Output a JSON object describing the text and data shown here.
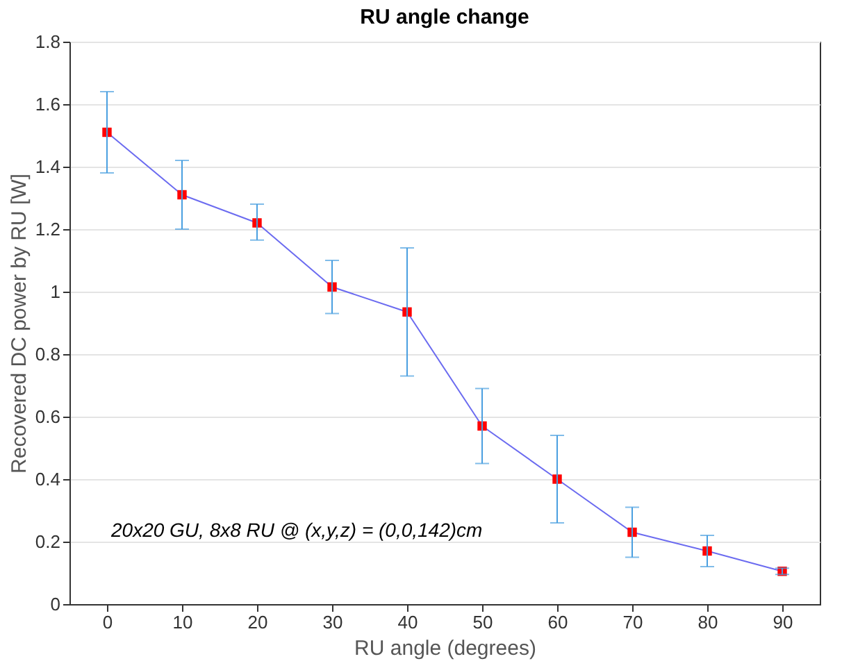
{
  "chart_data": {
    "type": "line",
    "title": "RU angle change",
    "xlabel": "RU angle (degrees)",
    "ylabel": "Recovered DC power by RU [W]",
    "x": [
      0,
      10,
      20,
      30,
      40,
      50,
      60,
      70,
      80,
      90
    ],
    "series": [
      {
        "color": "#6b6bf0",
        "values": [
          1.51,
          1.31,
          1.22,
          1.015,
          0.935,
          0.57,
          0.4,
          0.23,
          0.17,
          0.105
        ],
        "errors": [
          [
            1.38,
            1.64
          ],
          [
            1.2,
            1.42
          ],
          [
            1.165,
            1.28
          ],
          [
            0.93,
            1.1
          ],
          [
            0.73,
            1.14
          ],
          [
            0.45,
            0.69
          ],
          [
            0.26,
            0.54
          ],
          [
            0.15,
            0.31
          ],
          [
            0.12,
            0.22
          ],
          [
            0.095,
            0.115
          ]
        ]
      }
    ],
    "xlim": [
      -5,
      95
    ],
    "xticks": [
      0,
      10,
      20,
      30,
      40,
      50,
      60,
      70,
      80,
      90
    ],
    "ylim": [
      0,
      1.8
    ],
    "yticks": [
      0,
      0.2,
      0.4,
      0.6,
      0.8,
      1,
      1.2,
      1.4,
      1.6,
      1.8
    ],
    "grid": "y",
    "marker": "square",
    "line_style": "solid",
    "annotations": [
      "20x20 GU, 8x8 RU @ (x,y,z) = (0,0,142)cm"
    ]
  }
}
